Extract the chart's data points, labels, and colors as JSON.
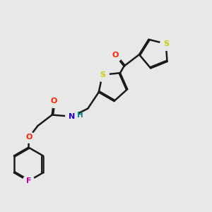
{
  "bg_color": "#e8e8e8",
  "bond_color": "#1a1a1a",
  "oxygen_color": "#ff2200",
  "nitrogen_color": "#2200cc",
  "sulfur_color": "#cccc00",
  "fluorine_color": "#cc00aa",
  "hydrogen_color": "#008888",
  "lw": 1.8,
  "lw2": 1.4,
  "doffset": 0.055,
  "fig_w": 3.0,
  "fig_h": 3.0,
  "dpi": 100,
  "xlim": [
    0,
    10
  ],
  "ylim": [
    0,
    10
  ]
}
